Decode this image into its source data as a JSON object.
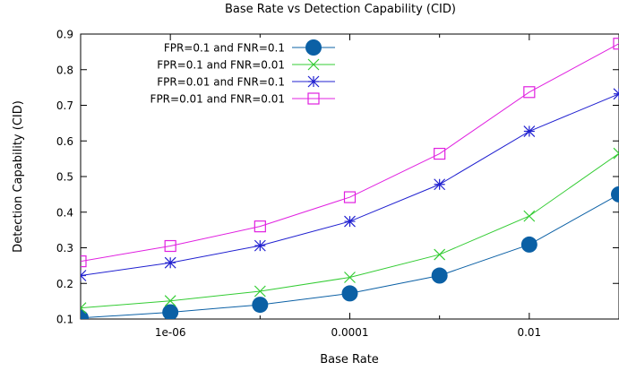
{
  "chart_data": {
    "type": "line",
    "title": "Base Rate vs Detection Capability (CID)",
    "xlabel": "Base Rate",
    "ylabel": "Detection Capability (CID)",
    "xscale": "log",
    "xlim": [
      1e-07,
      0.1
    ],
    "ylim": [
      0.1,
      0.9
    ],
    "yticks": [
      0.1,
      0.2,
      0.3,
      0.4,
      0.5,
      0.6,
      0.7,
      0.8,
      0.9
    ],
    "ytick_labels": [
      "0.1",
      "0.2",
      "0.3",
      "0.4",
      "0.5",
      "0.6",
      "0.7",
      "0.8",
      "0.9"
    ],
    "xticks": [
      1e-06,
      0.0001,
      0.01
    ],
    "xtick_labels": [
      "1e-06",
      "0.0001",
      "0.01"
    ],
    "grid": false,
    "legend_position": "top-left",
    "x": [
      1e-07,
      1e-06,
      1e-05,
      0.0001,
      0.001,
      0.01,
      0.1
    ],
    "series": [
      {
        "name": "FPR=0.1 and FNR=0.1",
        "marker": "filled-circle",
        "color": "#0b60a5",
        "values": [
          0.103,
          0.119,
          0.14,
          0.172,
          0.222,
          0.309,
          0.45
        ]
      },
      {
        "name": "FPR=0.1 and FNR=0.01",
        "marker": "x",
        "color": "#33cc33",
        "values": [
          0.131,
          0.151,
          0.178,
          0.217,
          0.281,
          0.389,
          0.565
        ]
      },
      {
        "name": "FPR=0.01 and FNR=0.1",
        "marker": "asterisk",
        "color": "#2020d0",
        "values": [
          0.222,
          0.258,
          0.306,
          0.374,
          0.478,
          0.627,
          0.732
        ]
      },
      {
        "name": "FPR=0.01 and FNR=0.01",
        "marker": "open-square",
        "color": "#e020e0",
        "values": [
          0.262,
          0.305,
          0.36,
          0.442,
          0.564,
          0.737,
          0.873
        ]
      }
    ]
  }
}
